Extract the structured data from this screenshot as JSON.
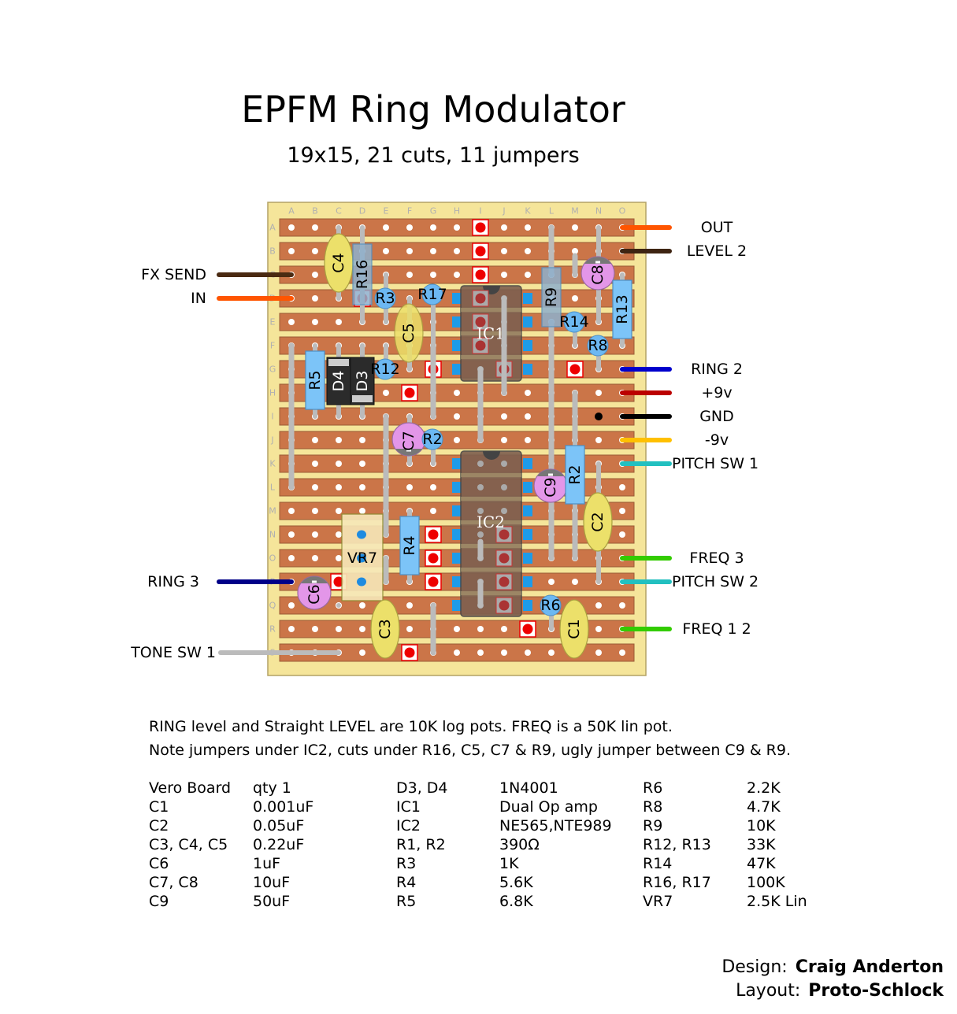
{
  "title": "EPFM Ring Modulator",
  "subtitle": "19x15, 21 cuts, 11 jumpers",
  "board": {
    "columns": [
      "A",
      "B",
      "C",
      "D",
      "E",
      "F",
      "G",
      "H",
      "I",
      "J",
      "K",
      "L",
      "M",
      "N",
      "O"
    ],
    "rows": [
      "A",
      "B",
      "C",
      "D",
      "E",
      "F",
      "G",
      "H",
      "I",
      "J",
      "K",
      "L",
      "M",
      "N",
      "O",
      "P",
      "Q",
      "R",
      "S"
    ],
    "colors": {
      "board": "#f5e59a",
      "strip": "#cb7548",
      "cut": "#ee0000",
      "jumper": "#bbbbbb",
      "resistor": "#7cc4f8",
      "film_cap": "#ece06a",
      "electrolytic": "#e396e8",
      "ic": "#7e5f4f"
    }
  },
  "components": {
    "C1": "C1",
    "C2": "C2",
    "C3": "C3",
    "C4": "C4",
    "C5": "C5",
    "C6": "C6",
    "C7": "C7",
    "C8": "C8",
    "C9": "C9",
    "R2a": "R2",
    "R2b": "R2",
    "R3": "R3",
    "R4": "R4",
    "R5": "R5",
    "R6": "R6",
    "R8": "R8",
    "R9": "R9",
    "R12": "R12",
    "R13": "R13",
    "R14": "R14",
    "R16": "R16",
    "R17": "R17",
    "D3": "D3",
    "D4": "D4",
    "IC1": "IC1",
    "IC2": "IC2",
    "VR7": "VR7"
  },
  "wires": [
    {
      "label": "OUT",
      "color": "#ff5500",
      "side": "right"
    },
    {
      "label": "LEVEL 2",
      "color": "#3e2412",
      "side": "right"
    },
    {
      "label": "RING 2",
      "color": "#0000cc",
      "side": "right"
    },
    {
      "label": "+9v",
      "color": "#bb0000",
      "side": "right"
    },
    {
      "label": "GND",
      "color": "#000000",
      "side": "right"
    },
    {
      "label": "-9v",
      "color": "#ffc000",
      "side": "right"
    },
    {
      "label": "PITCH SW 1",
      "color": "#22c0c0",
      "side": "right"
    },
    {
      "label": "FREQ 3",
      "color": "#33cc00",
      "side": "right"
    },
    {
      "label": "PITCH SW 2",
      "color": "#22c0c0",
      "side": "right"
    },
    {
      "label": "FREQ 1 2",
      "color": "#33cc00",
      "side": "right"
    },
    {
      "label": "FX SEND",
      "color": "#4a2a12",
      "side": "left"
    },
    {
      "label": "IN",
      "color": "#ff5500",
      "side": "left"
    },
    {
      "label": "RING 3",
      "color": "#000088",
      "side": "left"
    },
    {
      "label": "TONE SW 1",
      "color": "#bbbbbb",
      "side": "left"
    }
  ],
  "notes": [
    "RING level and Straight LEVEL are 10K log pots. FREQ is a 50K lin pot.",
    "Note jumpers under IC2, cuts under R16, C5, C7 & R9, ugly jumper between C9 & R9."
  ],
  "bom": [
    [
      [
        "Vero Board",
        "qty 1"
      ],
      [
        "C1",
        "0.001uF"
      ],
      [
        "C2",
        "0.05uF"
      ],
      [
        "C3, C4, C5",
        "0.22uF"
      ],
      [
        "C6",
        "1uF"
      ],
      [
        "C7, C8",
        "10uF"
      ],
      [
        "C9",
        "50uF"
      ]
    ],
    [
      [
        "D3, D4",
        "1N4001"
      ],
      [
        "IC1",
        "Dual Op amp"
      ],
      [
        "IC2",
        "NE565,NTE989"
      ],
      [
        "R1, R2",
        "390Ω"
      ],
      [
        "R3",
        "1K"
      ],
      [
        "R4",
        "5.6K"
      ],
      [
        "R5",
        "6.8K"
      ]
    ],
    [
      [
        "R6",
        "2.2K"
      ],
      [
        "R8",
        "4.7K"
      ],
      [
        "R9",
        "10K"
      ],
      [
        "R12, R13",
        "33K"
      ],
      [
        "R14",
        "47K"
      ],
      [
        "R16, R17",
        "100K"
      ],
      [
        "VR7",
        "2.5K Lin"
      ]
    ]
  ],
  "credits": {
    "design_label": "Design:",
    "design_name": "Craig Anderton",
    "layout_label": "Layout:",
    "layout_name": "Proto-Schlock"
  }
}
